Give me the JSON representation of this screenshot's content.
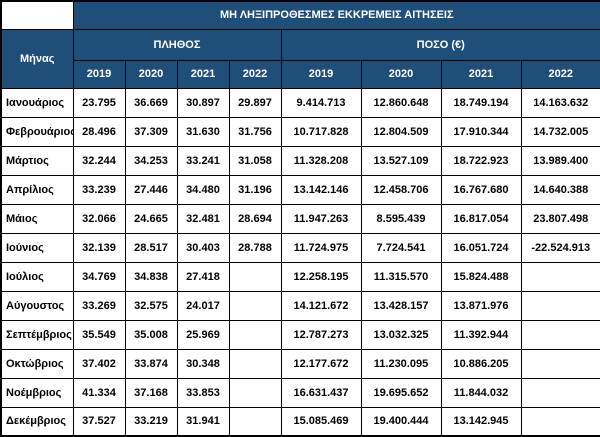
{
  "chart_data": {
    "type": "table",
    "title": "ΜΗ ΛΗΞΙΠΡΟΘΕΣΜΕΣ ΕΚΚΡΕΜΕΙΣ ΑΙΤΗΣΕΙΣ",
    "row_header": "Μήνας",
    "groups": [
      {
        "label": "ΠΛΗΘΟΣ",
        "years": [
          "2019",
          "2020",
          "2021",
          "2022"
        ]
      },
      {
        "label": "ΠΟΣΟ (€)",
        "years": [
          "2019",
          "2020",
          "2021",
          "2022"
        ]
      }
    ],
    "rows": [
      {
        "month": "Ιανουάριος",
        "plithos": [
          "23.795",
          "36.669",
          "30.897",
          "29.897"
        ],
        "poso": [
          "9.414.713",
          "12.860.648",
          "18.749.194",
          "14.163.632"
        ]
      },
      {
        "month": "Φεβρουάριος",
        "plithos": [
          "28.496",
          "37.309",
          "31.630",
          "31.756"
        ],
        "poso": [
          "10.717.828",
          "12.804.509",
          "17.910.344",
          "14.732.005"
        ]
      },
      {
        "month": "Μάρτιος",
        "plithos": [
          "32.244",
          "34.253",
          "33.241",
          "31.058"
        ],
        "poso": [
          "11.328.208",
          "13.527.109",
          "18.722.923",
          "13.989.400"
        ]
      },
      {
        "month": "Απρίλιος",
        "plithos": [
          "33.239",
          "27.446",
          "34.480",
          "31.196"
        ],
        "poso": [
          "13.142.146",
          "12.458.706",
          "16.767.680",
          "14.640.388"
        ]
      },
      {
        "month": "Μάιος",
        "plithos": [
          "32.066",
          "24.665",
          "32.481",
          "28.694"
        ],
        "poso": [
          "11.947.263",
          "8.595.439",
          "16.817.054",
          "23.807.498"
        ]
      },
      {
        "month": "Ιούνιος",
        "plithos": [
          "32.139",
          "28.517",
          "30.403",
          "28.788"
        ],
        "poso": [
          "11.724.975",
          "7.724.541",
          "16.051.724",
          "-22.524.913"
        ]
      },
      {
        "month": "Ιούλιος",
        "plithos": [
          "34.769",
          "34.838",
          "27.418",
          ""
        ],
        "poso": [
          "12.258.195",
          "11.315.570",
          "15.824.488",
          ""
        ]
      },
      {
        "month": "Αύγουστος",
        "plithos": [
          "33.269",
          "32.575",
          "24.017",
          ""
        ],
        "poso": [
          "14.121.672",
          "13.428.157",
          "13.871.976",
          ""
        ]
      },
      {
        "month": "Σεπτέμβριος",
        "plithos": [
          "35.549",
          "35.008",
          "25.969",
          ""
        ],
        "poso": [
          "12.787.273",
          "13.032.325",
          "11.392.944",
          ""
        ]
      },
      {
        "month": "Οκτώβριος",
        "plithos": [
          "37.402",
          "33.874",
          "30.348",
          ""
        ],
        "poso": [
          "12.177.672",
          "11.230.095",
          "10.886.205",
          ""
        ]
      },
      {
        "month": "Νοέμβριος",
        "plithos": [
          "41.334",
          "37.168",
          "33.853",
          ""
        ],
        "poso": [
          "16.631.437",
          "19.695.652",
          "11.844.032",
          ""
        ]
      },
      {
        "month": "Δεκέμβριος",
        "plithos": [
          "37.527",
          "33.219",
          "31.941",
          ""
        ],
        "poso": [
          "15.085.469",
          "19.400.444",
          "13.142.945",
          ""
        ]
      }
    ]
  },
  "colors": {
    "header_bg": "#1F4E79",
    "header_text": "#FFFFFF",
    "body_bg": "#FFFFFF",
    "body_text": "#000000",
    "border": "#000000"
  }
}
